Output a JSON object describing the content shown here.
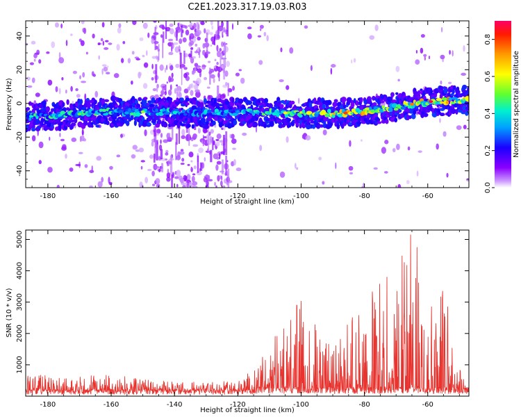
{
  "figure_title": "C2E1.2023.317.19.03.R03",
  "colors": {
    "frame": "#000000",
    "snr_line": "#e8332e",
    "background": "#ffffff"
  },
  "chart_data": [
    {
      "type": "heatmap",
      "name": "spectrogram",
      "xlabel": "Height of straight line (km)",
      "ylabel": "Frequency (Hz)",
      "xlim": [
        -187,
        -47
      ],
      "ylim": [
        -50,
        49
      ],
      "xticks": [
        -180,
        -160,
        -140,
        -120,
        -100,
        -80,
        -60
      ],
      "xtick_labels": [
        "-180",
        "-160",
        "-140",
        "-120",
        "-100",
        "-80",
        "-60"
      ],
      "yticks": [
        -40,
        -20,
        0,
        20,
        40
      ],
      "ytick_labels": [
        "-40",
        "-20",
        "0",
        "20",
        "40"
      ],
      "ridge": {
        "description": "dominant frequency band vs height",
        "x": [
          -187,
          -175,
          -160,
          -145,
          -130,
          -115,
          -100,
          -90,
          -80,
          -70,
          -60,
          -48
        ],
        "freq": [
          -8,
          -7,
          -5,
          -5,
          -6,
          -5,
          -6,
          -6,
          -5,
          -2,
          1,
          2
        ],
        "peak_amplitude": [
          0.5,
          0.5,
          0.5,
          0.45,
          0.4,
          0.5,
          0.6,
          0.7,
          0.75,
          0.6,
          0.85,
          0.7
        ]
      },
      "colorbar": {
        "label": "Normalized spectral amplitude",
        "range": [
          0,
          0.9
        ],
        "ticks": [
          0.0,
          0.2,
          0.4,
          0.6,
          0.8
        ],
        "tick_labels": [
          "0.0",
          "0.2",
          "0.4",
          "0.6",
          "0.8"
        ]
      }
    },
    {
      "type": "line",
      "name": "snr",
      "xlabel": "Height of straight line (km)",
      "ylabel": "SNR (10 * v/v)",
      "xlim": [
        -187,
        -47
      ],
      "ylim": [
        0,
        5300
      ],
      "xticks": [
        -180,
        -160,
        -140,
        -120,
        -100,
        -80,
        -60
      ],
      "xtick_labels": [
        "-180",
        "-160",
        "-140",
        "-120",
        "-100",
        "-80",
        "-60"
      ],
      "yticks": [
        1000,
        2000,
        3000,
        4000,
        5000
      ],
      "ytick_labels": [
        "1000",
        "2000",
        "3000",
        "4000",
        "5000"
      ],
      "envelope": {
        "x": [
          -187,
          -170,
          -160,
          -150,
          -140,
          -130,
          -120,
          -115,
          -110,
          -105,
          -100,
          -95,
          -90,
          -85,
          -80,
          -75,
          -70,
          -65,
          -60,
          -55,
          -48
        ],
        "y": [
          700,
          650,
          700,
          550,
          450,
          450,
          500,
          900,
          1900,
          2200,
          3300,
          2300,
          1500,
          2500,
          3000,
          3800,
          4600,
          5300,
          4000,
          3500,
          300
        ]
      }
    }
  ]
}
